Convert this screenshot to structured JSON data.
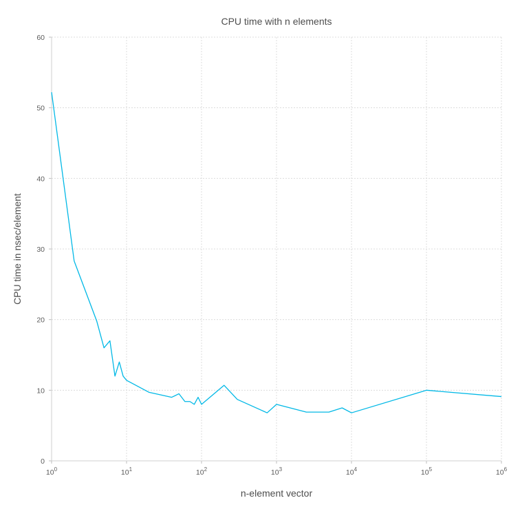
{
  "chart_data": {
    "type": "line",
    "title": "CPU time with n elements",
    "xlabel": "n-element vector",
    "ylabel": "CPU time in nsec/element",
    "x_scale": "log10",
    "xlim": [
      1,
      1000000
    ],
    "ylim": [
      0,
      60
    ],
    "grid": true,
    "legend": "none",
    "xticks": [
      {
        "base": "10",
        "exp": "0"
      },
      {
        "base": "10",
        "exp": "1"
      },
      {
        "base": "10",
        "exp": "2"
      },
      {
        "base": "10",
        "exp": "3"
      },
      {
        "base": "10",
        "exp": "4"
      },
      {
        "base": "10",
        "exp": "5"
      },
      {
        "base": "10",
        "exp": "6"
      }
    ],
    "yticks": [
      "0",
      "10",
      "20",
      "30",
      "40",
      "50",
      "60"
    ],
    "series": [
      {
        "color": "#00b8e6",
        "x": [
          1,
          2,
          4,
          5,
          6,
          7,
          8,
          9,
          10,
          20,
          40,
          50,
          60,
          70,
          80,
          90,
          100,
          200,
          300,
          750,
          1000,
          2500,
          5000,
          7500,
          10000,
          100000,
          1000000
        ],
        "y": [
          52.2,
          28.3,
          19.8,
          16.0,
          17.0,
          12.0,
          14.0,
          12.0,
          11.4,
          9.7,
          9.0,
          9.5,
          8.4,
          8.4,
          8.0,
          9.0,
          8.0,
          10.7,
          8.7,
          6.8,
          8.0,
          6.9,
          6.9,
          7.5,
          6.8,
          10.0,
          9.1
        ]
      }
    ]
  }
}
